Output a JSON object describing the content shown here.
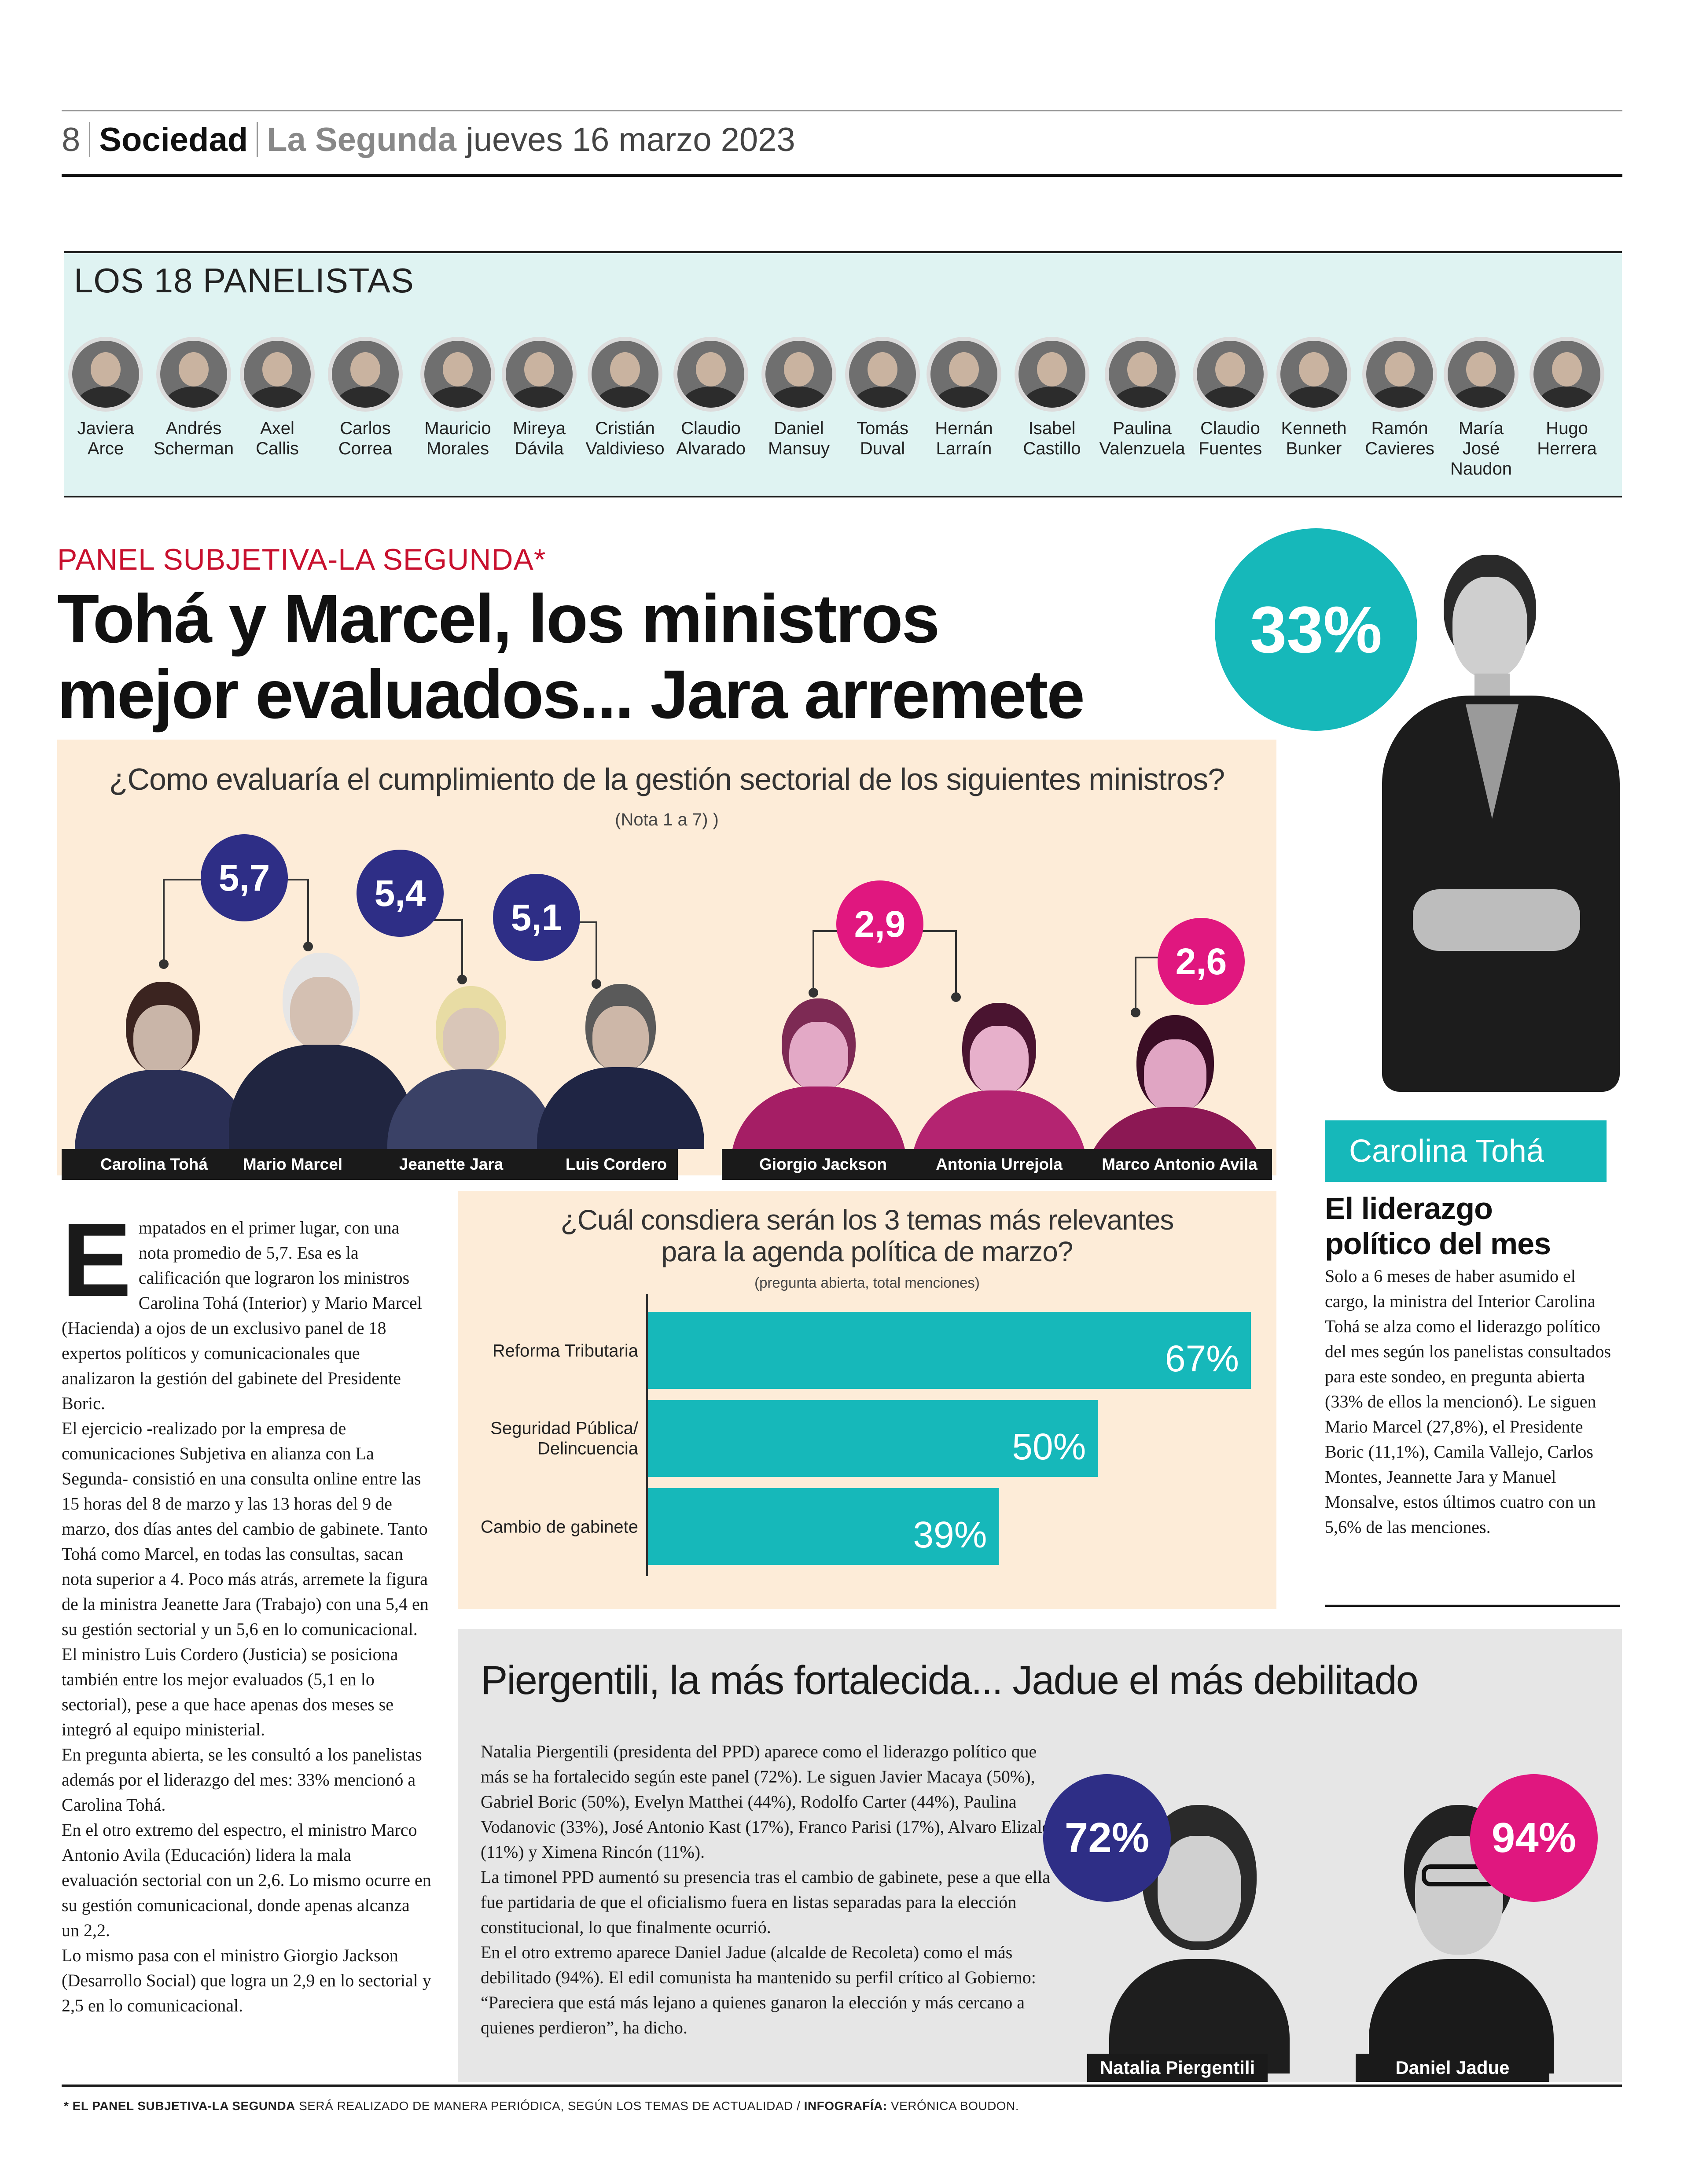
{
  "header": {
    "page_number": "8",
    "section": "Sociedad",
    "paper": "La Segunda",
    "date": "jueves 16 marzo 2023"
  },
  "panel": {
    "title": "LOS 18 PANELISTAS",
    "panelists": [
      {
        "line1": "Javiera",
        "line2": "Arce",
        "line3": ""
      },
      {
        "line1": "Andrés",
        "line2": "Scherman",
        "line3": ""
      },
      {
        "line1": "Axel",
        "line2": "Callis",
        "line3": ""
      },
      {
        "line1": "Carlos",
        "line2": "Correa",
        "line3": ""
      },
      {
        "line1": "Mauricio",
        "line2": "Morales",
        "line3": ""
      },
      {
        "line1": "Mireya",
        "line2": "Dávila",
        "line3": ""
      },
      {
        "line1": "Cristián",
        "line2": "Valdivieso",
        "line3": ""
      },
      {
        "line1": "Claudio",
        "line2": "Alvarado",
        "line3": ""
      },
      {
        "line1": "Daniel",
        "line2": "Mansuy",
        "line3": ""
      },
      {
        "line1": "Tomás",
        "line2": "Duval",
        "line3": ""
      },
      {
        "line1": "Hernán",
        "line2": "Larraín",
        "line3": ""
      },
      {
        "line1": "Isabel",
        "line2": "Castillo",
        "line3": ""
      },
      {
        "line1": "Paulina",
        "line2": "Valenzuela",
        "line3": ""
      },
      {
        "line1": "Claudio",
        "line2": "Fuentes",
        "line3": ""
      },
      {
        "line1": "Kenneth",
        "line2": "Bunker",
        "line3": ""
      },
      {
        "line1": "Ramón",
        "line2": "Cavieres",
        "line3": ""
      },
      {
        "line1": "María",
        "line2": "José",
        "line3": "Naudon"
      },
      {
        "line1": "Hugo",
        "line2": "Herrera",
        "line3": ""
      }
    ]
  },
  "kicker": "PANEL SUBJETIVA-LA SEGUNDA*",
  "headline": {
    "line1": "Tohá y Marcel, los ministros",
    "line2": "mejor evaluados... Jara arremete"
  },
  "question1": {
    "text": "¿Como evaluaría el cumplimiento de la gestión sectorial de los siguientes ministros?",
    "note": "(Nota 1 a 7) )"
  },
  "ministers": {
    "top": [
      {
        "name": "Carolina Tohá"
      },
      {
        "name": "Mario Marcel"
      },
      {
        "name": "Jeanette Jara"
      },
      {
        "name": "Luis Cordero"
      }
    ],
    "bottom": [
      {
        "name": "Giorgio Jackson"
      },
      {
        "name": "Antonia Urrejola"
      },
      {
        "name": "Marco Antonio Avila"
      }
    ],
    "scores": {
      "top1": "5,7",
      "top2": "5,4",
      "top3": "5,1",
      "bottom1": "2,9",
      "bottom2": "2,6"
    }
  },
  "leader": {
    "percent": "33%",
    "name": "Carolina Tohá",
    "title_line1": "El liderazgo",
    "title_line2": "político del mes",
    "body": "Solo a 6 meses de haber asumido el cargo, la ministra del Interior Carolina Tohá se alza como el liderazgo político del mes según los panelistas consultados para este sondeo, en pregunta abierta (33% de ellos la mencionó). Le siguen Mario Marcel (27,8%), el Presidente Boric (11,1%), Camila Vallejo, Carlos Montes, Jeannette Jara y Manuel Monsalve, estos últimos cuatro con un 5,6% de las menciones."
  },
  "article": {
    "dropcap": "E",
    "lead": "mpatados en el primer lugar, con una nota promedio de 5,7. Esa es la calificación que lograron los ministros Carolina Tohá (Interior) y Mario Marcel (Hacienda) a ojos de un exclusivo panel de 18 expertos políticos y comunicacionales que analizaron la gestión del gabinete del Presidente Boric.",
    "p2": "El ejercicio -realizado por la empresa de comunicaciones Subjetiva en alianza con La Segunda- consistió en una consulta online entre las 15 horas del 8 de marzo y las 13 horas del 9 de marzo, dos días antes del cambio de gabinete. Tanto Tohá como Marcel, en todas las consultas, sacan nota superior a 4. Poco más atrás, arremete la figura de la ministra Jeanette Jara (Trabajo) con una 5,4 en su gestión sectorial y un 5,6 en lo comunicacional.",
    "p3": "El ministro Luis Cordero (Justicia) se posiciona también entre los mejor evaluados (5,1 en lo sectorial), pese a que hace apenas dos meses se integró al equipo ministerial.",
    "p4": "En pregunta abierta, se les consultó a los panelistas además por el liderazgo del mes: 33% mencionó a Carolina Tohá.",
    "p5": "En el otro extremo del espectro, el ministro Marco Antonio Avila (Educación) lidera la mala evaluación sectorial con un 2,6. Lo mismo ocurre en su gestión comunicacional, donde apenas alcanza un 2,2.",
    "p6": "Lo mismo pasa con el ministro Giorgio Jackson (Desarrollo Social) que logra un 2,9 en lo sectorial y 2,5 en lo comunicacional."
  },
  "question2": {
    "line1": "¿Cuál consdiera serán los 3 temas más relevantes",
    "line2": "para la agenda política de marzo?",
    "note": "(pregunta abierta, total menciones)"
  },
  "chart_data": {
    "type": "bar",
    "orientation": "horizontal",
    "categories": [
      "Reforma Tributaria",
      "Seguridad Pública/ Delincuencia",
      "Cambio de gabinete"
    ],
    "values": [
      67,
      50,
      39
    ],
    "value_labels": [
      "67%",
      "50%",
      "39%"
    ],
    "category_lines": [
      [
        "Reforma Tributaria"
      ],
      [
        "Seguridad Pública/",
        "Delincuencia"
      ],
      [
        "Cambio de gabinete"
      ]
    ],
    "bar_color": "#16b8ba",
    "xlim": [
      0,
      67
    ]
  },
  "bottom": {
    "title": "Piergentili, la más fortalecida... Jadue el más debilitado",
    "p1": "Natalia Piergentili (presidenta del PPD) aparece como el liderazgo político que más se ha fortalecido según este panel (72%). Le siguen Javier Macaya (50%), Gabriel Boric (50%), Evelyn Matthei (44%), Rodolfo Carter (44%), Paulina Vodanovic (33%), José Antonio Kast (17%), Franco Parisi (17%), Alvaro Elizalde (11%) y Ximena Rincón (11%).",
    "p2": "La timonel PPD aumentó su presencia tras el cambio de gabinete, pese a que ella fue partidaria de que el oficialismo fuera en listas separadas para la elección constitucional, lo que finalmente ocurrió.",
    "p3": "En el otro extremo aparece Daniel Jadue (alcalde de Recoleta) como el más debilitado (94%). El edil comunista ha mantenido su perfil crítico al Gobierno: “Pareciera que está más lejano a quienes ganaron la elección y más cercano a quienes perdieron”, ha dicho.",
    "pct1": "72%",
    "name1": "Natalia Piergentili",
    "pct2": "94%",
    "name2": "Daniel Jadue"
  },
  "footer": {
    "bold1": "* EL PANEL SUBJETIVA-LA SEGUNDA",
    "text1": " SERÁ REALIZADO DE MANERA PERIÓDICA, SEGÚN LOS TEMAS DE ACTUALIDAD / ",
    "bold2": "INFOGRAFÍA:",
    "text2": " VERÓNICA BOUDON."
  },
  "colors": {
    "teal": "#16b8ba",
    "navy": "#2e2e86",
    "magenta": "#e0177f",
    "red_kicker": "#c8102e",
    "panel_bg": "#dff3f2",
    "chart_bg": "#fdecd8",
    "gray_bg": "#e6e6e6"
  }
}
